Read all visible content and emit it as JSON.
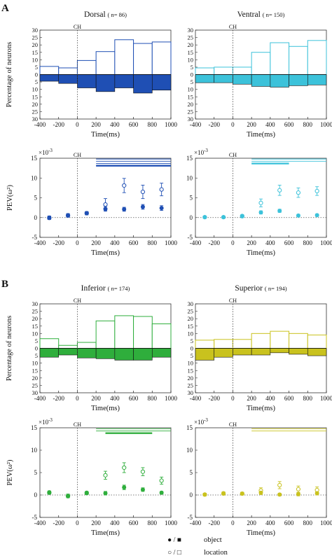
{
  "sections": [
    {
      "label": "A"
    },
    {
      "label": "B"
    }
  ],
  "common": {
    "x_label": "Time(ms)",
    "y_label_hist": "Percentage of neurons",
    "y_label_pev": "PEV(ω²)",
    "pev_exponent": "×10",
    "pev_exponent_power": "-3",
    "ch_label": "CH",
    "x_ticks": [
      -400,
      -200,
      0,
      200,
      400,
      600,
      800,
      1000
    ],
    "hist_y_ticks": [
      30,
      25,
      20,
      15,
      10,
      5,
      0,
      5,
      10,
      15,
      20,
      25,
      30
    ],
    "pev_y_ticks": [
      -5,
      0,
      5,
      10,
      15
    ]
  },
  "legend": {
    "items": [
      {
        "label": "object",
        "symbols": "● / ■"
      },
      {
        "label": "location",
        "symbols": "○ / □"
      }
    ]
  },
  "chart_data": [
    {
      "type": "bar",
      "section": "A",
      "region": "Dorsal",
      "n": "n= 86",
      "color": "#1f4fb4",
      "bin_edges": [
        -400,
        -200,
        0,
        200,
        400,
        600,
        800,
        1000
      ],
      "series": [
        {
          "name": "location",
          "values": [
            5.5,
            4.5,
            9.5,
            15.5,
            23.5,
            21,
            22
          ]
        },
        {
          "name": "object",
          "values": [
            4.5,
            6,
            9,
            11.5,
            9,
            12.5,
            10.5
          ]
        }
      ],
      "ylim": [
        -30,
        30
      ],
      "xlim": [
        -400,
        1000
      ]
    },
    {
      "type": "bar",
      "section": "A",
      "region": "Ventral",
      "n": "n= 150",
      "color": "#3cc2da",
      "bin_edges": [
        -400,
        -200,
        0,
        200,
        400,
        600,
        800,
        1000
      ],
      "series": [
        {
          "name": "location",
          "values": [
            4.5,
            5,
            5,
            15,
            21.5,
            19,
            23
          ]
        },
        {
          "name": "object",
          "values": [
            5.5,
            5.5,
            6.5,
            8,
            8.5,
            7.5,
            7
          ]
        }
      ],
      "ylim": [
        -30,
        30
      ],
      "xlim": [
        -400,
        1000
      ]
    },
    {
      "type": "scatter",
      "section": "A",
      "region": "Dorsal",
      "color": "#1f4fb4",
      "x": [
        -300,
        -100,
        100,
        300,
        500,
        700,
        900
      ],
      "series": [
        {
          "name": "object",
          "values": [
            0,
            0.6,
            1.1,
            2.2,
            2.1,
            2.7,
            2.4
          ],
          "err": [
            0.4,
            0.4,
            0.4,
            0.6,
            0.5,
            0.6,
            0.6
          ]
        },
        {
          "name": "location",
          "values": [
            -0.1,
            0.5,
            1.1,
            3.3,
            8.1,
            6.5,
            7.1
          ],
          "err": [
            0.4,
            0.4,
            0.4,
            1.5,
            1.8,
            1.7,
            1.6
          ]
        }
      ],
      "sig_bars": [
        [
          200,
          1000
        ],
        [
          200,
          1000
        ],
        [
          200,
          1000
        ],
        [
          200,
          1000
        ]
      ],
      "ylim": [
        -5,
        15
      ],
      "xlim": [
        -400,
        1000
      ]
    },
    {
      "type": "scatter",
      "section": "A",
      "region": "Ventral",
      "color": "#3cc2da",
      "x": [
        -300,
        -100,
        100,
        300,
        500,
        700,
        900
      ],
      "series": [
        {
          "name": "object",
          "values": [
            0.1,
            0.1,
            0.3,
            1.3,
            1.7,
            0.5,
            0.6
          ],
          "err": [
            0.3,
            0.3,
            0.3,
            0.4,
            0.4,
            0.3,
            0.3
          ]
        },
        {
          "name": "location",
          "values": [
            0.1,
            0.1,
            0.4,
            3.7,
            6.9,
            6.3,
            6.7
          ],
          "err": [
            0.3,
            0.3,
            0.3,
            1.0,
            1.3,
            1.2,
            1.1
          ]
        }
      ],
      "sig_bars": [
        [
          200,
          1000
        ],
        [
          200,
          1000
        ],
        [
          200,
          600
        ]
      ],
      "ylim": [
        -5,
        15
      ],
      "xlim": [
        -400,
        1000
      ]
    },
    {
      "type": "bar",
      "section": "B",
      "region": "Inferior",
      "n": "n= 174",
      "color": "#2fae3c",
      "bin_edges": [
        -400,
        -200,
        0,
        200,
        400,
        600,
        800,
        1000
      ],
      "series": [
        {
          "name": "location",
          "values": [
            6.5,
            2,
            4,
            18.5,
            22,
            21.5,
            16.5
          ]
        },
        {
          "name": "object",
          "values": [
            6,
            4.5,
            6.5,
            7,
            8,
            8,
            6
          ]
        }
      ],
      "ylim": [
        -30,
        30
      ],
      "xlim": [
        -400,
        1000
      ]
    },
    {
      "type": "bar",
      "section": "B",
      "region": "Superior",
      "n": "n= 194",
      "color": "#c9c21e",
      "bin_edges": [
        -400,
        -200,
        0,
        200,
        400,
        600,
        800,
        1000
      ],
      "series": [
        {
          "name": "location",
          "values": [
            5.5,
            6,
            6,
            10,
            11.5,
            10,
            9
          ]
        },
        {
          "name": "object",
          "values": [
            8,
            6,
            4.5,
            4.5,
            3,
            4,
            5
          ]
        }
      ],
      "ylim": [
        -30,
        30
      ],
      "xlim": [
        -400,
        1000
      ]
    },
    {
      "type": "scatter",
      "section": "B",
      "region": "Inferior",
      "color": "#2fae3c",
      "x": [
        -300,
        -100,
        100,
        300,
        500,
        700,
        900
      ],
      "series": [
        {
          "name": "object",
          "values": [
            0.6,
            -0.3,
            0.5,
            0.4,
            1.7,
            1.2,
            0.5
          ],
          "err": [
            0.3,
            0.3,
            0.3,
            0.4,
            0.5,
            0.4,
            0.3
          ]
        },
        {
          "name": "location",
          "values": [
            0.5,
            -0.2,
            0.4,
            4.4,
            6.1,
            5.2,
            3.2
          ],
          "err": [
            0.3,
            0.4,
            0.3,
            0.9,
            1.1,
            0.9,
            0.8
          ]
        }
      ],
      "sig_bars": [
        [
          200,
          1000
        ],
        [
          200,
          1000
        ],
        [
          300,
          800
        ]
      ],
      "ylim": [
        -5,
        15
      ],
      "xlim": [
        -400,
        1000
      ]
    },
    {
      "type": "scatter",
      "section": "B",
      "region": "Superior",
      "color": "#c9c21e",
      "x": [
        -300,
        -100,
        100,
        300,
        500,
        700,
        900
      ],
      "series": [
        {
          "name": "object",
          "values": [
            0.1,
            0.4,
            0.3,
            0.5,
            0.1,
            0.2,
            0.4
          ],
          "err": [
            0.3,
            0.3,
            0.3,
            0.4,
            0.3,
            0.4,
            0.4
          ]
        },
        {
          "name": "location",
          "values": [
            0.1,
            0.3,
            0.3,
            1.0,
            2.2,
            1.3,
            1.1
          ],
          "err": [
            0.3,
            0.3,
            0.3,
            0.6,
            0.8,
            0.7,
            0.7
          ]
        }
      ],
      "sig_bars": [
        [
          200,
          1000
        ],
        [
          200,
          1000
        ]
      ],
      "ylim": [
        -5,
        15
      ],
      "xlim": [
        -400,
        1000
      ]
    }
  ]
}
